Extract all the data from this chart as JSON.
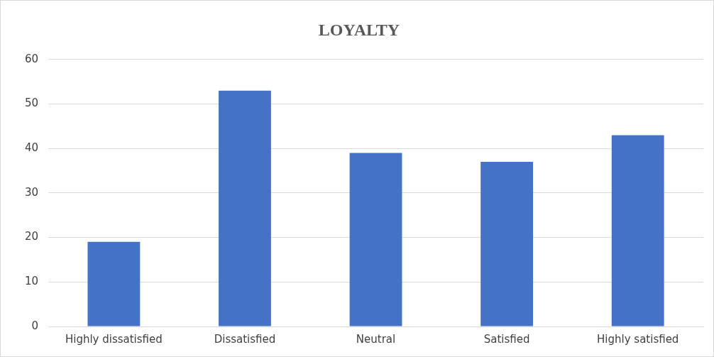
{
  "chart_data": {
    "type": "bar",
    "title": "LOYALTY",
    "categories": [
      "Highly dissatisfied",
      "Dissatisfied",
      "Neutral",
      "Satisfied",
      "Highly satisfied"
    ],
    "values": [
      19,
      53,
      39,
      37,
      43
    ],
    "color": "#4472c4",
    "ylim": [
      0,
      60
    ],
    "yticks": [
      0,
      10,
      20,
      30,
      40,
      50,
      60
    ],
    "grid": "y",
    "legend": false
  }
}
